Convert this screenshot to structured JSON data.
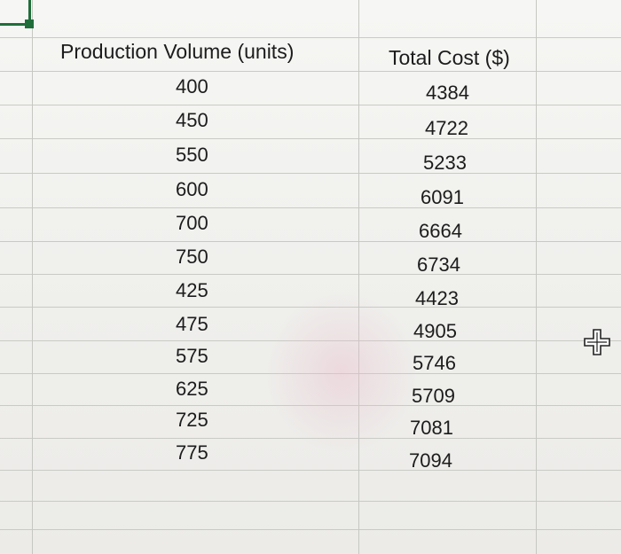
{
  "spreadsheet": {
    "columns": [
      "Production Volume (units)",
      "Total Cost ($)"
    ],
    "rows": [
      {
        "volume": "400",
        "cost": "4384"
      },
      {
        "volume": "450",
        "cost": "4722"
      },
      {
        "volume": "550",
        "cost": "5233"
      },
      {
        "volume": "600",
        "cost": "6091"
      },
      {
        "volume": "700",
        "cost": "6664"
      },
      {
        "volume": "750",
        "cost": "6734"
      },
      {
        "volume": "425",
        "cost": "4423"
      },
      {
        "volume": "475",
        "cost": "4905"
      },
      {
        "volume": "575",
        "cost": "5746"
      },
      {
        "volume": "625",
        "cost": "5709"
      },
      {
        "volume": "725",
        "cost": "7081"
      },
      {
        "volume": "775",
        "cost": "7094"
      }
    ]
  },
  "cursor": {
    "icon": "move-cross-icon"
  },
  "selection": {
    "color": "#1f6e3a"
  }
}
